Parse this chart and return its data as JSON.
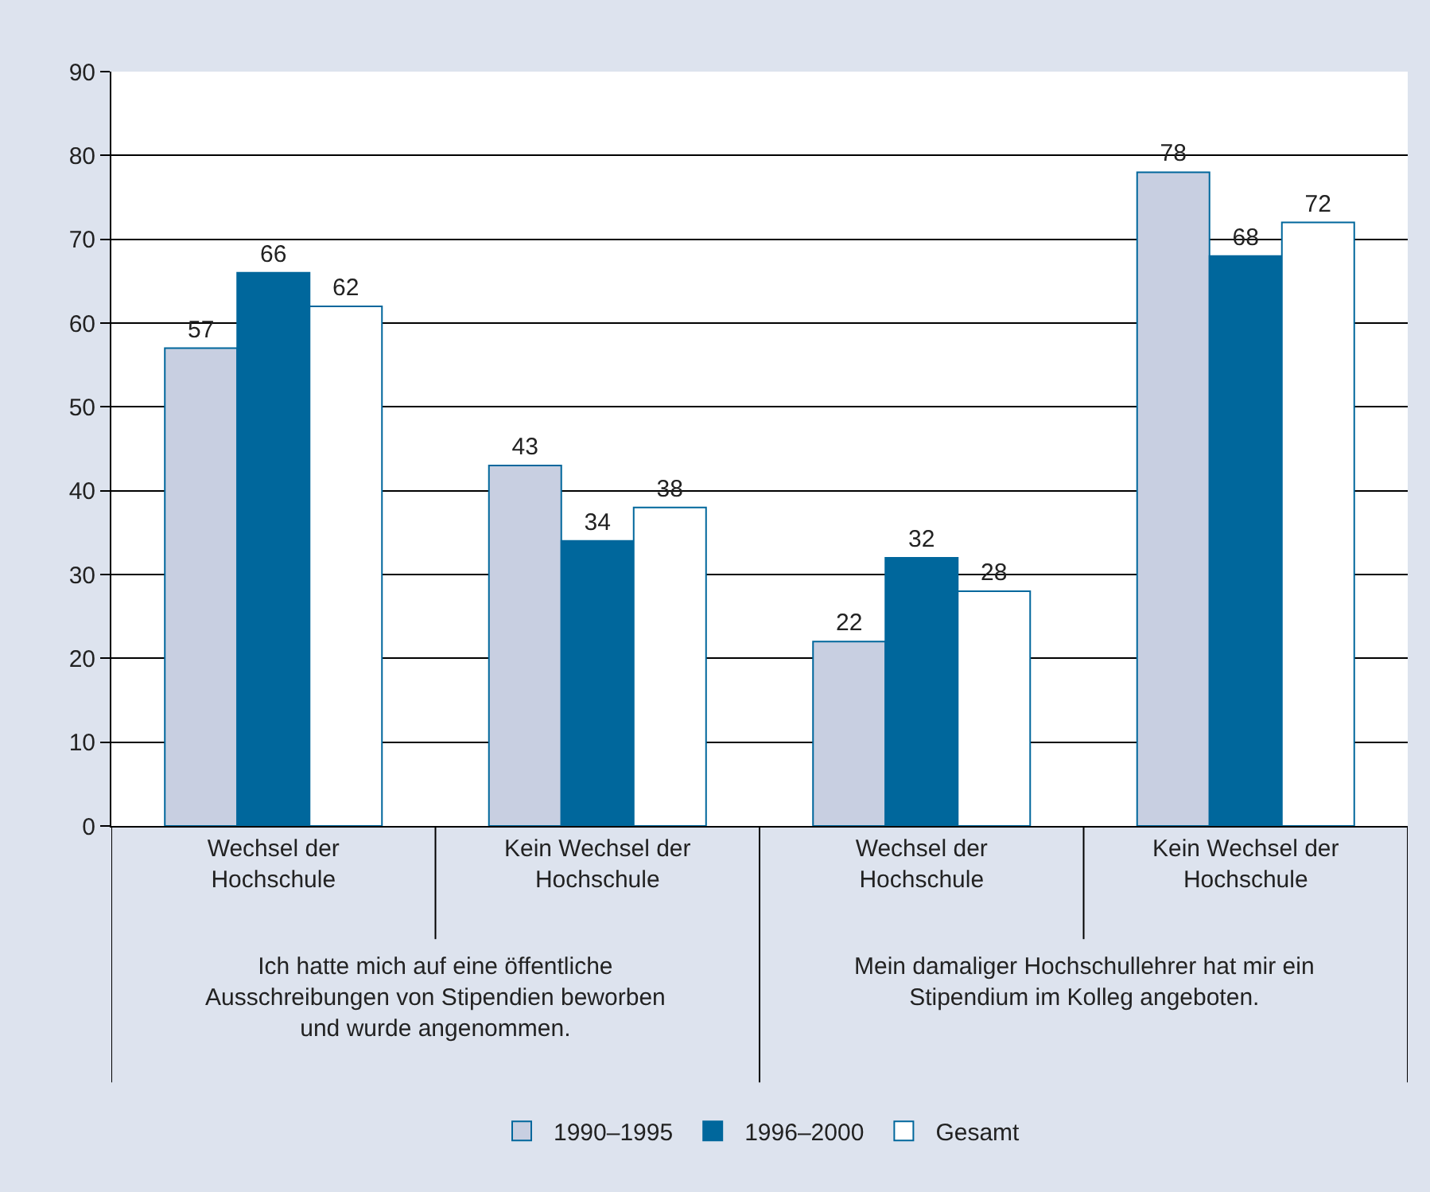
{
  "chart_data": {
    "type": "bar",
    "categories": [
      "Wechsel der Hochschule",
      "Kein Wechsel der Hochschule",
      "Wechsel der Hochschule",
      "Kein Wechsel der Hochschule"
    ],
    "series": [
      {
        "name": "1990–1995",
        "color": "#c8cfe1",
        "values": [
          57,
          43,
          22,
          78
        ]
      },
      {
        "name": "1996–2000",
        "color": "#00679c",
        "values": [
          66,
          34,
          32,
          68
        ]
      },
      {
        "name": "Gesamt",
        "color": "#ffffff",
        "values": [
          62,
          38,
          28,
          72
        ]
      }
    ],
    "annotations": [
      "Ich hatte mich auf eine öffentliche Ausschreibungen von Stipendien beworben und wurde angenommen.",
      "Mein damaliger Hochschullehrer hat mir ein Stipendium im Kolleg angeboten."
    ],
    "ylim": [
      0,
      90
    ],
    "yticks": [
      0,
      10,
      20,
      30,
      40,
      50,
      60,
      70,
      80,
      90
    ],
    "grid": "y",
    "legend": "bottom",
    "data_labels": true
  }
}
